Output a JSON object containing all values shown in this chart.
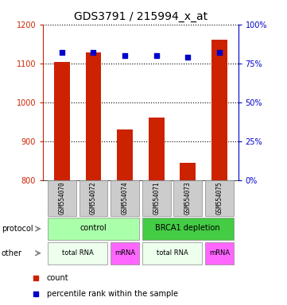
{
  "title": "GDS3791 / 215994_x_at",
  "samples": [
    "GSM554070",
    "GSM554072",
    "GSM554074",
    "GSM554071",
    "GSM554073",
    "GSM554075"
  ],
  "counts": [
    1103,
    1127,
    930,
    960,
    845,
    1160
  ],
  "percentiles": [
    82,
    82,
    80,
    80,
    79,
    82
  ],
  "ymin": 800,
  "ymax": 1200,
  "yticks": [
    800,
    900,
    1000,
    1100,
    1200
  ],
  "y2min": 0,
  "y2max": 100,
  "y2ticks": [
    0,
    25,
    50,
    75,
    100
  ],
  "y2ticklabels": [
    "0%",
    "25%",
    "50%",
    "75%",
    "100%"
  ],
  "bar_color": "#cc2200",
  "dot_color": "#0000cc",
  "bar_width": 0.5,
  "protocol_color_light": "#aaffaa",
  "protocol_color_dark": "#44cc44",
  "other_color_light": "#eeffee",
  "other_color_pink": "#ff66ff",
  "legend_count_color": "#cc2200",
  "legend_dot_color": "#0000cc",
  "title_fontsize": 10
}
